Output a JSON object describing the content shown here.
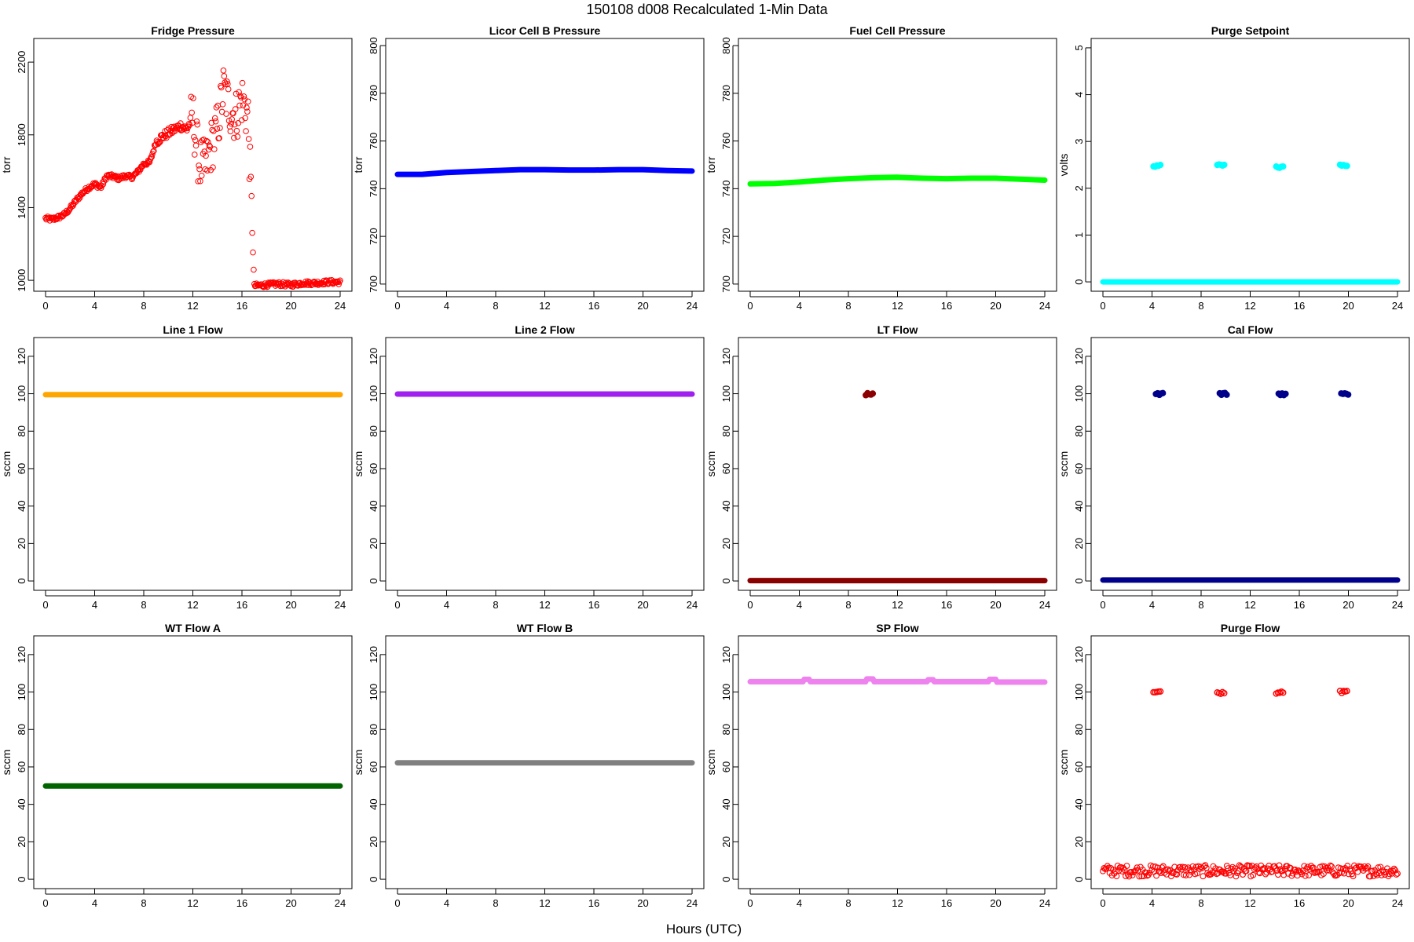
{
  "chart_data": {
    "type": "scatter",
    "title": "150108   d008   Recalculated 1-Min Data",
    "xlabel": "Hours (UTC)",
    "x_ticks": [
      0,
      4,
      8,
      12,
      16,
      20,
      24
    ],
    "xlim": [
      0,
      24
    ],
    "grid": false,
    "panels": [
      {
        "title": "Fridge Pressure",
        "ylabel": "torr",
        "color": "#ff0000",
        "marker": "open-circle",
        "ylim": [
          940,
          2330
        ],
        "yticks": [
          1000,
          1400,
          1800,
          2200
        ],
        "series": [
          {
            "x": [
              0.0,
              0.5,
              1.0,
              1.5,
              2.0,
              2.5,
              3.0,
              3.5,
              4.0,
              4.5,
              5.0,
              5.5,
              6.0,
              6.5,
              7.0,
              7.5,
              8.0,
              8.5,
              9.0,
              9.5,
              10.0,
              10.5,
              11.0,
              11.5,
              12.0,
              12.5,
              13.0,
              13.5,
              14.0,
              14.5,
              15.0,
              15.5,
              16.0,
              16.5,
              17.0,
              18.0,
              19.0,
              20.0,
              21.0,
              22.0,
              23.0,
              24.0
            ],
            "y": [
              1340,
              1335,
              1345,
              1360,
              1395,
              1440,
              1480,
              1510,
              1530,
              1510,
              1575,
              1570,
              1560,
              1575,
              1565,
              1595,
              1640,
              1650,
              1760,
              1790,
              1810,
              1830,
              1850,
              1830,
              1900,
              1650,
              1620,
              1740,
              1830,
              2050,
              1950,
              1900,
              2000,
              1900,
              970,
              975,
              980,
              975,
              985,
              985,
              990,
              990
            ]
          }
        ]
      },
      {
        "title": "Licor Cell B Pressure",
        "ylabel": "torr",
        "color": "#0000ff",
        "marker": "filled-line",
        "ylim": [
          697,
          803
        ],
        "yticks": [
          700,
          720,
          740,
          760,
          780,
          800
        ],
        "series": [
          {
            "x": [
              0,
              2,
              4,
              6,
              8,
              10,
              12,
              14,
              16,
              18,
              20,
              22,
              24
            ],
            "y": [
              746,
              746,
              746.8,
              747.2,
              747.6,
              748,
              748,
              747.8,
              747.8,
              748,
              748,
              747.6,
              747.4
            ]
          }
        ]
      },
      {
        "title": "Fuel Cell Pressure",
        "ylabel": "torr",
        "color": "#00ff00",
        "marker": "filled-line",
        "ylim": [
          697,
          803
        ],
        "yticks": [
          700,
          720,
          740,
          760,
          780,
          800
        ],
        "series": [
          {
            "x": [
              0,
              2,
              4,
              6,
              8,
              10,
              12,
              14,
              16,
              18,
              20,
              22,
              24
            ],
            "y": [
              742,
              742.2,
              742.8,
              743.6,
              744.2,
              744.6,
              744.8,
              744.4,
              744.2,
              744.4,
              744.4,
              744.0,
              743.6
            ]
          }
        ]
      },
      {
        "title": "Purge Setpoint",
        "ylabel": "volts",
        "color": "#00ffff",
        "marker": "filled-line",
        "ylim": [
          -0.2,
          5.2
        ],
        "yticks": [
          0,
          1,
          2,
          3,
          4,
          5
        ],
        "series": [
          {
            "x": [
              0,
              24
            ],
            "y": [
              0,
              0
            ]
          },
          {
            "x": [
              4.4,
              9.6,
              14.4,
              19.6
            ],
            "y": [
              2.48,
              2.5,
              2.46,
              2.5
            ],
            "style": "cluster"
          }
        ]
      },
      {
        "title": "Line 1 Flow",
        "ylabel": "sccm",
        "color": "#ffa500",
        "marker": "filled-line",
        "ylim": [
          -5,
          130
        ],
        "yticks": [
          0,
          20,
          40,
          60,
          80,
          100,
          120
        ],
        "series": [
          {
            "x": [
              0,
              24
            ],
            "y": [
              99.5,
              99.5
            ]
          }
        ]
      },
      {
        "title": "Line 2 Flow",
        "ylabel": "sccm",
        "color": "#a020f0",
        "marker": "filled-line",
        "ylim": [
          -5,
          130
        ],
        "yticks": [
          0,
          20,
          40,
          60,
          80,
          100,
          120
        ],
        "series": [
          {
            "x": [
              0,
              24
            ],
            "y": [
              99.8,
              99.8
            ]
          }
        ]
      },
      {
        "title": "LT Flow",
        "ylabel": "sccm",
        "color": "#8b0000",
        "marker": "filled-line",
        "ylim": [
          -5,
          130
        ],
        "yticks": [
          0,
          20,
          40,
          60,
          80,
          100,
          120
        ],
        "series": [
          {
            "x": [
              0,
              24
            ],
            "y": [
              0.2,
              0.2
            ]
          },
          {
            "x": [
              9.7
            ],
            "y": [
              99.8
            ],
            "style": "cluster"
          }
        ]
      },
      {
        "title": "Cal Flow",
        "ylabel": "sccm",
        "color": "#00008b",
        "marker": "filled-line",
        "ylim": [
          -5,
          130
        ],
        "yticks": [
          0,
          20,
          40,
          60,
          80,
          100,
          120
        ],
        "series": [
          {
            "x": [
              0,
              24
            ],
            "y": [
              0.5,
              0.5
            ]
          },
          {
            "x": [
              4.6,
              9.8,
              14.6,
              19.7
            ],
            "y": [
              99.8,
              99.8,
              99.8,
              99.8
            ],
            "style": "cluster"
          }
        ]
      },
      {
        "title": "WT Flow A",
        "ylabel": "sccm",
        "color": "#006400",
        "marker": "filled-line",
        "ylim": [
          -5,
          130
        ],
        "yticks": [
          0,
          20,
          40,
          60,
          80,
          100,
          120
        ],
        "series": [
          {
            "x": [
              0,
              24
            ],
            "y": [
              49.8,
              49.8
            ]
          }
        ]
      },
      {
        "title": "WT Flow B",
        "ylabel": "sccm",
        "color": "#808080",
        "marker": "filled-line",
        "ylim": [
          -5,
          130
        ],
        "yticks": [
          0,
          20,
          40,
          60,
          80,
          100,
          120
        ],
        "series": [
          {
            "x": [
              0,
              24
            ],
            "y": [
              62.2,
              62.2
            ]
          }
        ]
      },
      {
        "title": "SP Flow",
        "ylabel": "sccm",
        "color": "#ee82ee",
        "marker": "filled-line",
        "ylim": [
          -5,
          130
        ],
        "yticks": [
          0,
          20,
          40,
          60,
          80,
          100,
          120
        ],
        "series": [
          {
            "x": [
              0,
              4.3,
              4.4,
              4.8,
              4.9,
              9.4,
              9.5,
              10.0,
              10.1,
              14.4,
              14.5,
              14.9,
              15.0,
              19.4,
              19.5,
              20.0,
              20.1,
              24
            ],
            "y": [
              105.5,
              105.5,
              106.8,
              106.8,
              105.5,
              105.5,
              107.0,
              107.0,
              105.5,
              105.5,
              106.6,
              106.6,
              105.5,
              105.5,
              106.8,
              106.8,
              105.3,
              105.3
            ]
          }
        ]
      },
      {
        "title": "Purge Flow",
        "ylabel": "sccm",
        "color": "#ff0000",
        "marker": "open-circle",
        "ylim": [
          -5,
          130
        ],
        "yticks": [
          0,
          20,
          40,
          60,
          80,
          100,
          120
        ],
        "series": [
          {
            "x": [
              0,
              24
            ],
            "y": [
              4.5,
              4.5
            ],
            "style": "noisy-band",
            "spread": 3
          },
          {
            "x": [
              4.4,
              9.6,
              14.4,
              19.6
            ],
            "y": [
              100,
              99.5,
              99.7,
              100
            ],
            "style": "cluster"
          }
        ]
      }
    ]
  }
}
